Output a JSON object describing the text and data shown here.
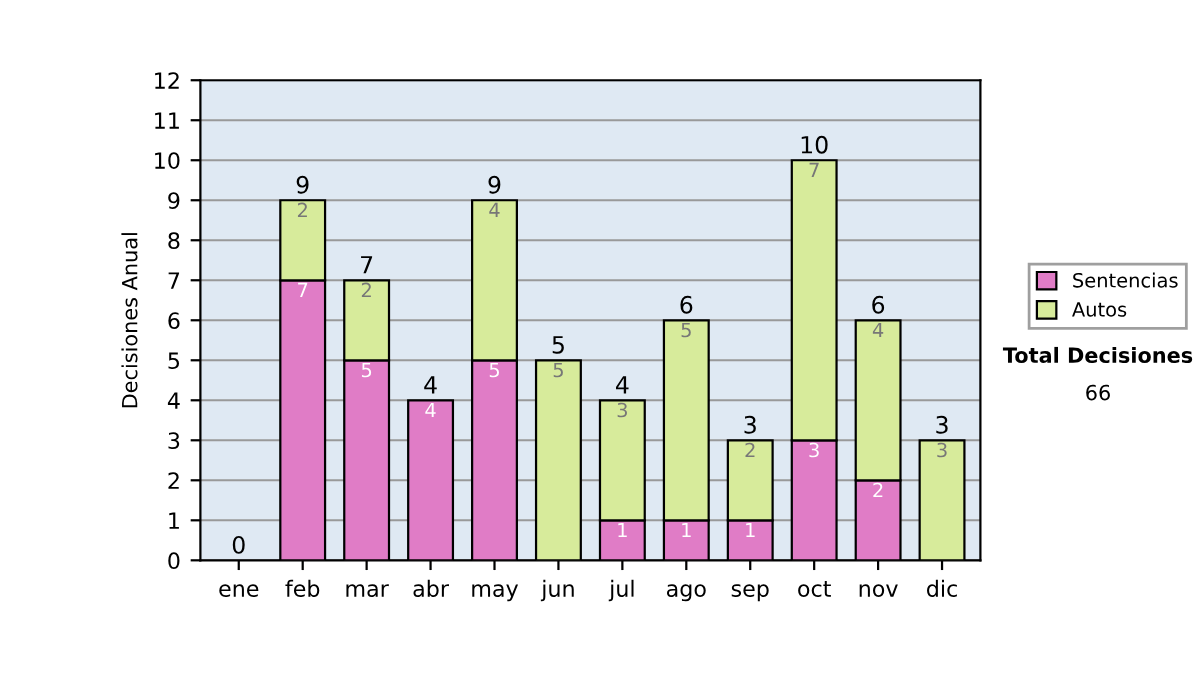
{
  "chart_data": {
    "type": "bar",
    "stacked": true,
    "ylabel": "Decisiones Anual",
    "categories": [
      "ene",
      "feb",
      "mar",
      "abr",
      "may",
      "jun",
      "jul",
      "ago",
      "sep",
      "oct",
      "nov",
      "dic"
    ],
    "series": [
      {
        "name": "Sentencias",
        "color": "#e07cc6",
        "values": [
          0,
          7,
          5,
          4,
          5,
          0,
          1,
          1,
          1,
          3,
          2,
          0
        ],
        "value_labels": [
          null,
          "7",
          "5",
          "4",
          "5",
          null,
          "1",
          "1",
          "1",
          "3",
          "2",
          null
        ]
      },
      {
        "name": "Autos",
        "color": "#d7eb9b",
        "values": [
          0,
          2,
          2,
          0,
          4,
          5,
          3,
          5,
          2,
          7,
          4,
          3
        ],
        "value_labels": [
          null,
          "2",
          "2",
          null,
          "4",
          "5",
          "3",
          "5",
          "2",
          "7",
          "4",
          "3"
        ]
      }
    ],
    "totals": [
      "0",
      "9",
      "7",
      "4",
      "9",
      "5",
      "4",
      "6",
      "3",
      "10",
      "6",
      "3"
    ],
    "ylim": [
      0,
      12
    ],
    "yticks": [
      0,
      1,
      2,
      3,
      4,
      5,
      6,
      7,
      8,
      9,
      10,
      11,
      12
    ],
    "grid": "y",
    "legend": "right",
    "annotations": [
      "Total Decisiones",
      "66"
    ]
  }
}
